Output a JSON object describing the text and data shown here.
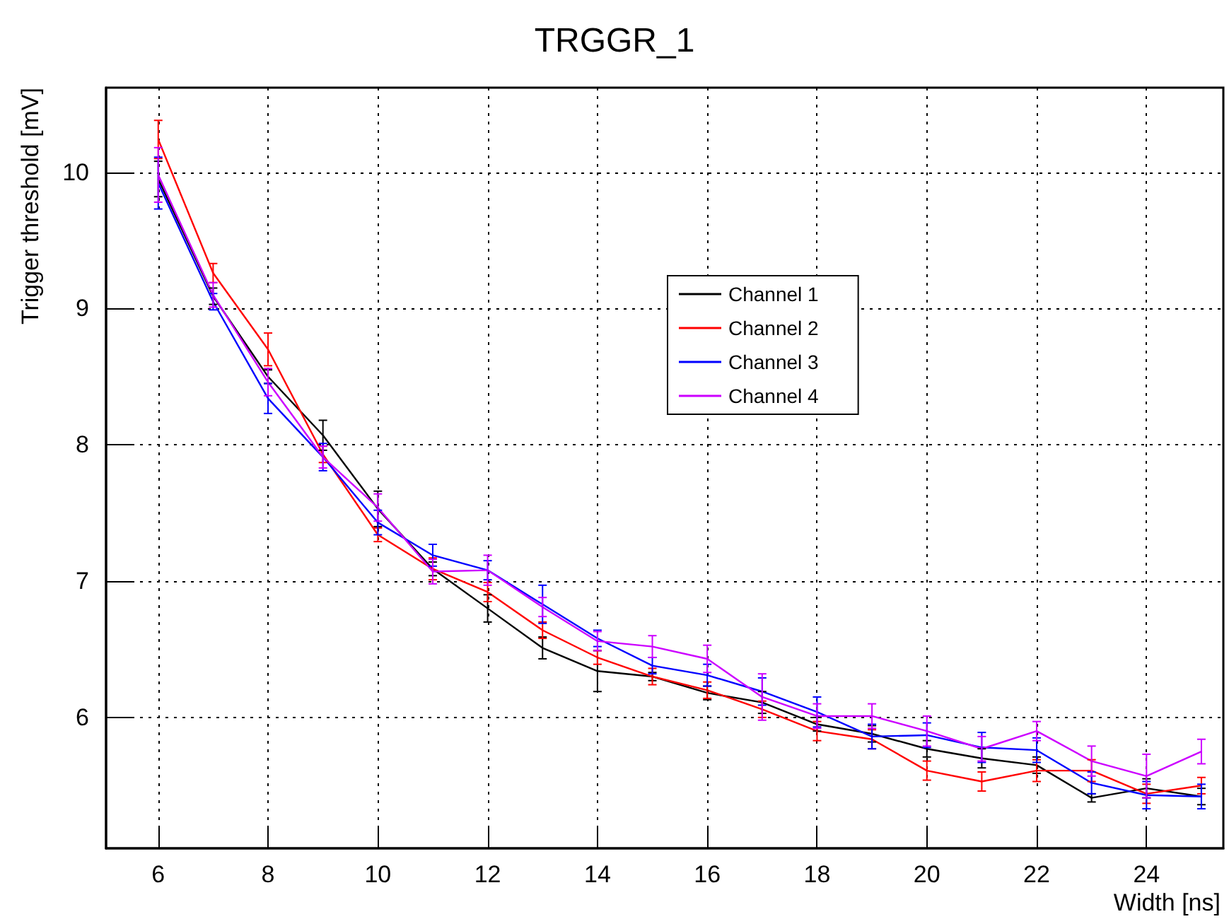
{
  "chart_data": {
    "type": "line",
    "title": "TRGGR_1",
    "xlabel": "Width [ns]",
    "ylabel": "Trigger threshold [mV]",
    "x": [
      6,
      7,
      8,
      9,
      10,
      11,
      12,
      13,
      14,
      15,
      16,
      17,
      18,
      19,
      20,
      21,
      22,
      23,
      24,
      25
    ],
    "series": [
      {
        "name": "Channel 1",
        "color": "#000000",
        "values": [
          9.95,
          9.09,
          8.5,
          8.07,
          7.53,
          7.09,
          6.8,
          6.51,
          6.34,
          6.3,
          6.18,
          6.11,
          5.95,
          5.88,
          5.77,
          5.7,
          5.65,
          5.41,
          5.48,
          5.42
        ],
        "errors": [
          0.13,
          0.06,
          0.05,
          0.11,
          0.13,
          0.05,
          0.1,
          0.08,
          0.15,
          0.03,
          0.05,
          0.08,
          0.05,
          0.06,
          0.06,
          0.07,
          0.06,
          0.03,
          0.07,
          0.06
        ]
      },
      {
        "name": "Channel 2",
        "color": "#ff0000",
        "values": [
          10.24,
          9.26,
          8.7,
          7.93,
          7.34,
          7.09,
          6.92,
          6.64,
          6.44,
          6.3,
          6.2,
          6.06,
          5.9,
          5.84,
          5.61,
          5.53,
          5.61,
          5.61,
          5.44,
          5.5
        ],
        "errors": [
          0.14,
          0.07,
          0.12,
          0.06,
          0.05,
          0.08,
          0.07,
          0.06,
          0.05,
          0.06,
          0.06,
          0.06,
          0.07,
          0.07,
          0.07,
          0.07,
          0.08,
          0.08,
          0.07,
          0.06
        ]
      },
      {
        "name": "Channel 3",
        "color": "#0000ff",
        "values": [
          9.92,
          9.05,
          8.34,
          7.91,
          7.43,
          7.19,
          7.08,
          6.83,
          6.58,
          6.38,
          6.31,
          6.19,
          6.04,
          5.86,
          5.87,
          5.78,
          5.76,
          5.52,
          5.43,
          5.42
        ],
        "errors": [
          0.19,
          0.06,
          0.11,
          0.1,
          0.09,
          0.08,
          0.07,
          0.14,
          0.06,
          0.06,
          0.08,
          0.1,
          0.11,
          0.09,
          0.09,
          0.11,
          0.09,
          0.08,
          0.1,
          0.09
        ]
      },
      {
        "name": "Channel 4",
        "color": "#cc00ff",
        "values": [
          9.98,
          9.1,
          8.46,
          7.91,
          7.54,
          7.07,
          7.08,
          6.81,
          6.56,
          6.52,
          6.43,
          6.15,
          6.01,
          6.01,
          5.9,
          5.77,
          5.9,
          5.68,
          5.57,
          5.75
        ],
        "errors": [
          0.2,
          0.09,
          0.1,
          0.08,
          0.1,
          0.09,
          0.11,
          0.07,
          0.07,
          0.08,
          0.1,
          0.17,
          0.09,
          0.09,
          0.11,
          0.09,
          0.07,
          0.11,
          0.16,
          0.09
        ]
      }
    ],
    "xlim": [
      5.05,
      25.4
    ],
    "xticks": [
      6,
      8,
      10,
      12,
      14,
      16,
      18,
      20,
      22,
      24
    ],
    "ylim": [
      5.04,
      10.62
    ],
    "yticks": [
      6,
      7,
      8,
      9,
      10
    ],
    "grid": true,
    "legend": "top right",
    "marker": "none",
    "line_style": "solid"
  }
}
